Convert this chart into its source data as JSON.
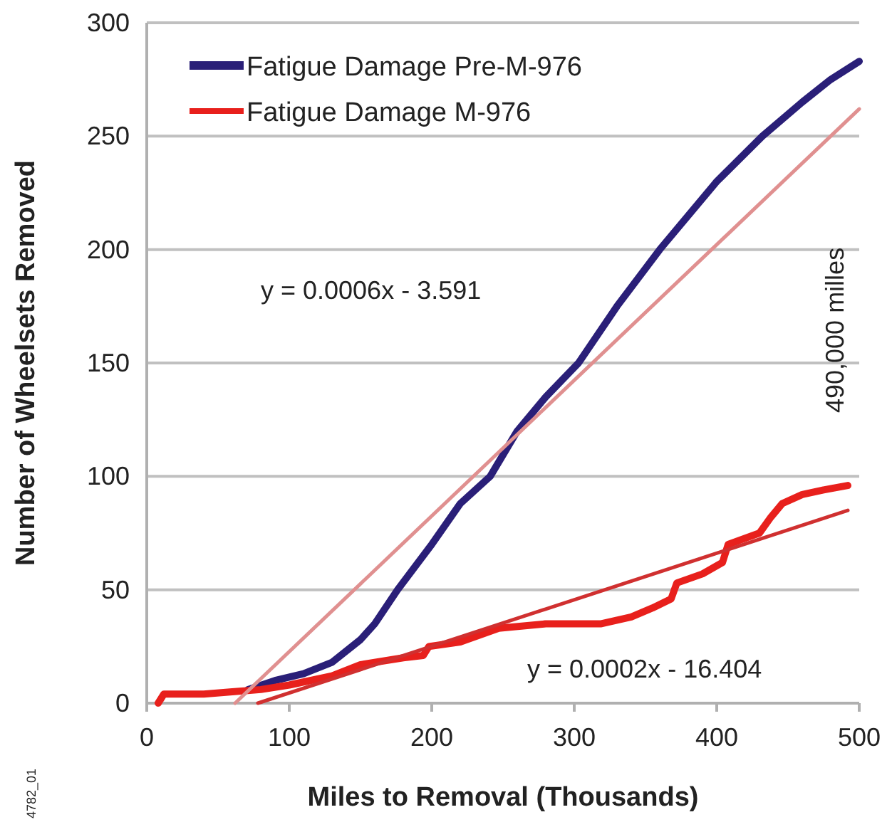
{
  "chart_data": {
    "type": "line",
    "xlabel": "Miles to Removal (Thousands)",
    "ylabel": "Number of Wheelsets Removed",
    "xlim": [
      0,
      500
    ],
    "xticks": [
      0,
      100,
      200,
      300,
      400,
      500
    ],
    "ylim": [
      0,
      300
    ],
    "yticks": [
      0,
      50,
      100,
      150,
      200,
      250,
      300
    ],
    "grid": "y",
    "legend": "top left",
    "line_style": "solid",
    "series": [
      {
        "name": "Fatigue Damage Pre-M-976",
        "color": "#2a1f78",
        "x": [
          71,
          90,
          110,
          130,
          150,
          160,
          176,
          200,
          220,
          241,
          260,
          280,
          303,
          330,
          360,
          400,
          432,
          460,
          480,
          500
        ],
        "values": [
          6,
          10,
          13,
          18,
          28,
          35,
          50,
          70,
          88,
          100,
          120,
          135,
          150,
          175,
          200,
          230,
          250,
          265,
          275,
          283
        ]
      },
      {
        "name": "Fatigue Damage M-976",
        "color": "#e8201c",
        "x": [
          8,
          12,
          40,
          60,
          80,
          100,
          130,
          150,
          180,
          194,
          198,
          220,
          247,
          280,
          319,
          340,
          355,
          368,
          372,
          390,
          404,
          408,
          430,
          438,
          446,
          460,
          475,
          492
        ],
        "values": [
          0,
          4,
          4,
          5,
          6,
          8,
          12,
          17,
          20,
          21,
          25,
          27,
          33,
          35,
          35,
          38,
          42,
          46,
          53,
          57,
          62,
          70,
          75,
          82,
          88,
          92,
          94,
          96
        ]
      },
      {
        "type": "line",
        "color": "#e09090",
        "x": [
          62,
          500
        ],
        "values": [
          0,
          262
        ]
      },
      {
        "type": "line",
        "color": "#d03030",
        "x": [
          78,
          492
        ],
        "values": [
          0,
          85
        ]
      }
    ],
    "annotations": [
      "y = 0.0006x - 3.591",
      "y = 0.0002x - 16.404",
      "490,000 milles",
      "4782_01"
    ]
  }
}
